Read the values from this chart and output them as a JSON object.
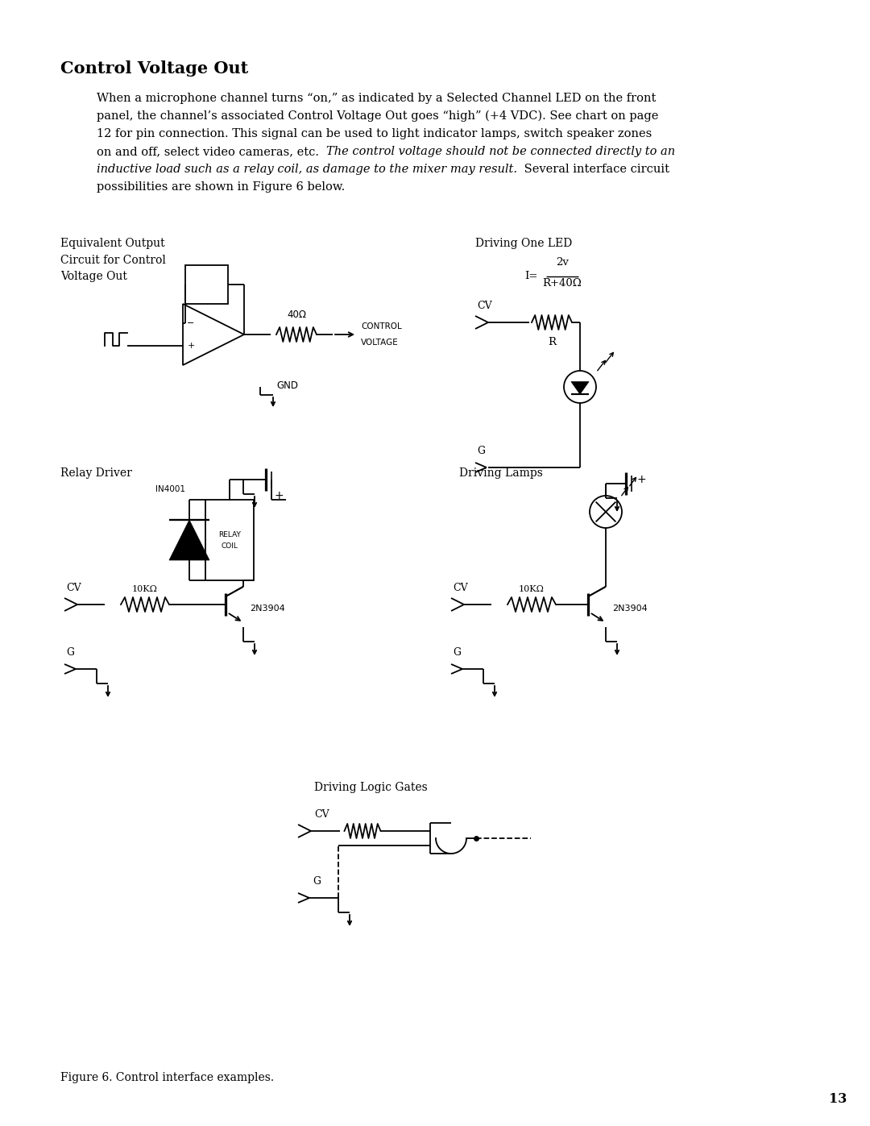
{
  "title": "Control Voltage Out",
  "body_text_normal_1": "When a microphone channel turns “on,” as indicated by a Selected Channel LED on the front",
  "body_text_normal_2": "panel, the channel’s associated Control Voltage Out goes “high” (+4 VDC). See chart on page",
  "body_text_normal_3": "12 for pin connection. This signal can be used to light indicator lamps, switch speaker zones",
  "body_text_normal_3b": "on and off, select video cameras, etc. ",
  "body_text_italic_1": "The control voltage should not be connected directly to an",
  "body_text_italic_2": "inductive load such as a relay coil, as damage to the mixer may result.",
  "body_text_normal_4": " Several interface circuit",
  "body_text_normal_5": "possibilities are shown in Figure 6 below.",
  "fig_caption": "Figure 6. Control interface examples.",
  "page_number": "13",
  "bg_color": "#ffffff",
  "text_color": "#000000",
  "label1": "Equivalent Output\nCircuit for Control\nVoltage Out",
  "label2": "Driving One LED",
  "label3": "Relay Driver",
  "label4": "Driving Lamps",
  "label5": "Driving Logic Gates"
}
